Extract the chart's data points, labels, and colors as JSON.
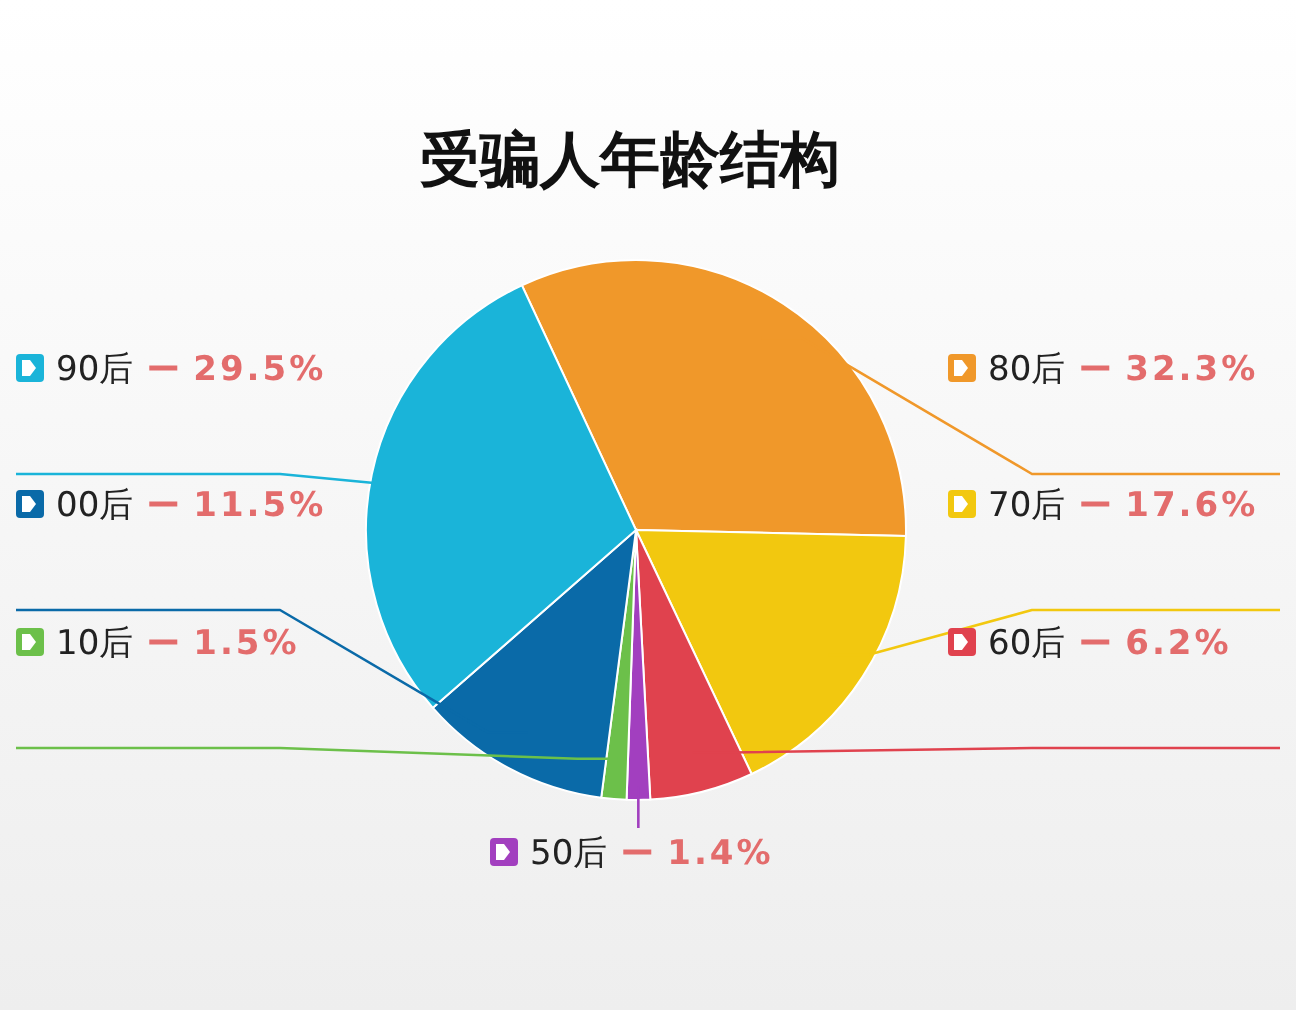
{
  "chart_data": {
    "type": "pie",
    "title": "受骗人年龄结构",
    "categories": [
      "80后",
      "70后",
      "60后",
      "50后",
      "10后",
      "00后",
      "90后"
    ],
    "values": [
      32.3,
      17.6,
      6.2,
      1.4,
      1.5,
      11.5,
      29.5
    ],
    "value_labels": [
      "32.3%",
      "17.6%",
      "6.2%",
      "1.4%",
      "1.5%",
      "11.5%",
      "29.5%"
    ],
    "legend": "left",
    "colors": [
      "#f0982a",
      "#f2c80f",
      "#e0424e",
      "#a23fbf",
      "#6cc04a",
      "#0a6aa8",
      "#1ab4d9"
    ]
  }
}
